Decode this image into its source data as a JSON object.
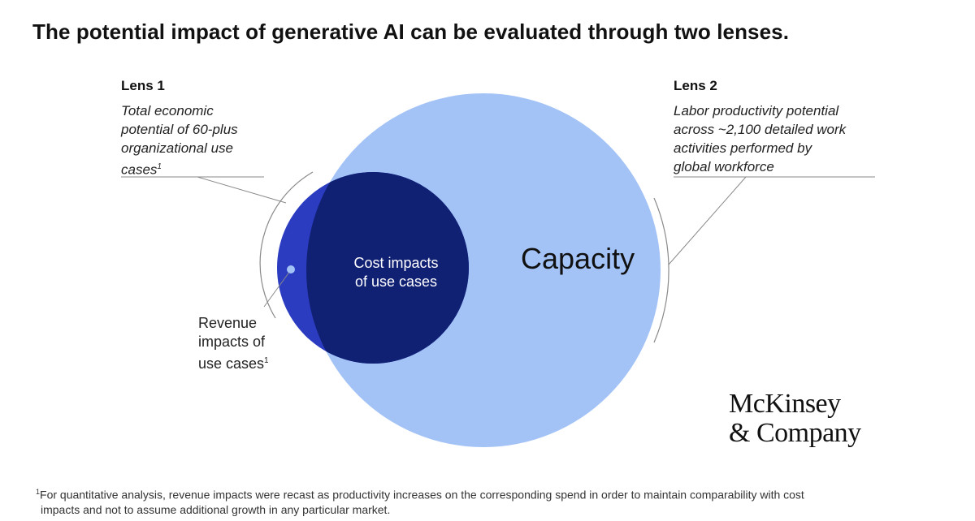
{
  "title": "The potential impact of generative AI can be evaluated through two lenses.",
  "lens1": {
    "heading": "Lens 1",
    "description_lines": [
      "Total economic",
      "potential of 60-plus",
      "organizational use",
      "cases"
    ],
    "footnote_marker": "1"
  },
  "lens2": {
    "heading": "Lens 2",
    "description_lines": [
      "Labor productivity potential",
      "across ~2,100 detailed work",
      "activities performed by",
      "global workforce"
    ]
  },
  "diagram": {
    "capacity_label": "Capacity",
    "cost_label_lines": [
      "Cost impacts",
      "of use cases"
    ],
    "revenue_label_lines": [
      "Revenue",
      "impacts of",
      "use cases"
    ],
    "revenue_footnote_marker": "1",
    "colors": {
      "capacity_circle": "#a3c3f7",
      "cost_circle": "#102073",
      "revenue_crescent": "#2b3cc0",
      "revenue_dot": "#a3c3f7",
      "leader_lines": "#8a8a8a"
    }
  },
  "logo": {
    "lines": [
      "McKinsey",
      "& Company"
    ]
  },
  "footnote": {
    "marker": "1",
    "lines": [
      "For quantitative analysis, revenue impacts were recast as productivity increases on the corresponding spend in order to maintain comparability with cost",
      "impacts and not to assume additional growth in any particular market."
    ]
  }
}
